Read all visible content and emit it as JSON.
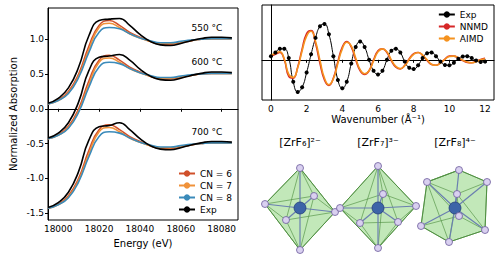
{
  "chart_data": [
    {
      "type": "line",
      "x_label": "Energy (eV)",
      "y_label": "Normalized Absorption",
      "x": [
        17995,
        18000,
        18005,
        18010,
        18015,
        18020,
        18025,
        18030,
        18035,
        18040,
        18045,
        18050,
        18055,
        18060,
        18065,
        18070,
        18075,
        18080,
        18085
      ],
      "groups": [
        {
          "annotation": "550 °C",
          "series": [
            {
              "name": "CN = 6",
              "color": "#d0502a",
              "values": [
                0.07,
                0.13,
                0.25,
                0.5,
                0.9,
                1.2,
                1.27,
                1.2,
                1.1,
                1.03,
                0.97,
                0.93,
                0.93,
                0.95,
                0.98,
                1.0,
                1.01,
                1.01,
                1.01
              ]
            },
            {
              "name": "CN = 7",
              "color": "#f0923a",
              "values": [
                0.07,
                0.12,
                0.23,
                0.47,
                0.85,
                1.17,
                1.23,
                1.17,
                1.08,
                1.02,
                0.97,
                0.94,
                0.94,
                0.96,
                0.98,
                1.0,
                1.01,
                1.01,
                1.01
              ]
            },
            {
              "name": "CN = 8",
              "color": "#3b8bba",
              "values": [
                0.07,
                0.12,
                0.22,
                0.45,
                0.81,
                1.1,
                1.17,
                1.15,
                1.08,
                1.02,
                0.98,
                0.95,
                0.95,
                0.97,
                0.99,
                1.0,
                1.01,
                1.01,
                1.01
              ]
            },
            {
              "name": "Exp",
              "color": "#000000",
              "values": [
                0.08,
                0.15,
                0.3,
                0.6,
                1.05,
                1.27,
                1.29,
                1.3,
                1.2,
                1.07,
                0.97,
                0.92,
                0.91,
                0.94,
                0.98,
                1.01,
                1.03,
                1.03,
                1.02
              ]
            }
          ]
        },
        {
          "annotation": "600 °C",
          "series": [
            {
              "name": "CN = 6",
              "color": "#d0502a",
              "values": [
                -0.43,
                -0.37,
                -0.25,
                0,
                0.4,
                0.7,
                0.77,
                0.7,
                0.6,
                0.53,
                0.47,
                0.43,
                0.43,
                0.45,
                0.48,
                0.5,
                0.51,
                0.51,
                0.51
              ]
            },
            {
              "name": "CN = 7",
              "color": "#f0923a",
              "values": [
                -0.43,
                -0.38,
                -0.27,
                -0.03,
                0.35,
                0.67,
                0.73,
                0.67,
                0.58,
                0.52,
                0.47,
                0.44,
                0.44,
                0.46,
                0.48,
                0.5,
                0.51,
                0.51,
                0.51
              ]
            },
            {
              "name": "CN = 8",
              "color": "#3b8bba",
              "values": [
                -0.43,
                -0.38,
                -0.28,
                -0.05,
                0.31,
                0.6,
                0.67,
                0.65,
                0.58,
                0.52,
                0.48,
                0.45,
                0.45,
                0.47,
                0.49,
                0.5,
                0.51,
                0.51,
                0.51
              ]
            },
            {
              "name": "Exp",
              "color": "#000000",
              "values": [
                -0.42,
                -0.35,
                -0.2,
                0.1,
                0.55,
                0.74,
                0.76,
                0.78,
                0.7,
                0.57,
                0.47,
                0.42,
                0.41,
                0.44,
                0.48,
                0.51,
                0.53,
                0.53,
                0.52
              ]
            }
          ]
        },
        {
          "annotation": "700 °C",
          "series": [
            {
              "name": "CN = 6",
              "color": "#d0502a",
              "values": [
                -1.43,
                -1.37,
                -1.25,
                -1,
                -0.6,
                -0.3,
                -0.23,
                -0.3,
                -0.4,
                -0.47,
                -0.53,
                -0.57,
                -0.57,
                -0.55,
                -0.52,
                -0.5,
                -0.49,
                -0.49,
                -0.49
              ]
            },
            {
              "name": "CN = 7",
              "color": "#f0923a",
              "values": [
                -1.43,
                -1.38,
                -1.27,
                -1.03,
                -0.65,
                -0.33,
                -0.27,
                -0.33,
                -0.42,
                -0.48,
                -0.53,
                -0.56,
                -0.56,
                -0.54,
                -0.52,
                -0.5,
                -0.49,
                -0.49,
                -0.49
              ]
            },
            {
              "name": "CN = 8",
              "color": "#3b8bba",
              "values": [
                -1.43,
                -1.38,
                -1.28,
                -1.05,
                -0.69,
                -0.4,
                -0.33,
                -0.35,
                -0.42,
                -0.48,
                -0.52,
                -0.55,
                -0.55,
                -0.53,
                -0.51,
                -0.5,
                -0.49,
                -0.49,
                -0.49
              ]
            },
            {
              "name": "Exp",
              "color": "#000000",
              "values": [
                -1.42,
                -1.35,
                -1.2,
                -0.9,
                -0.45,
                -0.26,
                -0.24,
                -0.2,
                -0.3,
                -0.43,
                -0.53,
                -0.58,
                -0.59,
                -0.56,
                -0.52,
                -0.49,
                -0.47,
                -0.47,
                -0.48
              ]
            }
          ]
        }
      ],
      "xlim": [
        17995,
        18088
      ],
      "xticks": [
        18000,
        18020,
        18040,
        18060,
        18080
      ],
      "ylim": [
        -1.6,
        1.45
      ],
      "yticks": [
        -1.5,
        {
          "value": -1,
          "label": "-1.0"
        },
        -0.5,
        {
          "value": 0,
          "label": "0.0"
        },
        0.5,
        {
          "value": 1,
          "label": "1.0"
        }
      ],
      "legend": "lower right",
      "grid": false
    },
    {
      "type": "line",
      "x_label": "Wavenumber (Å⁻¹)",
      "x": [
        0,
        0.25,
        0.5,
        0.75,
        1,
        1.25,
        1.5,
        1.75,
        2,
        2.25,
        2.5,
        2.75,
        3,
        3.25,
        3.5,
        3.75,
        4,
        4.25,
        4.5,
        4.75,
        5,
        5.25,
        5.5,
        5.75,
        6,
        6.25,
        6.5,
        6.75,
        7,
        7.25,
        7.5,
        7.75,
        8,
        8.25,
        8.5,
        8.75,
        9,
        9.25,
        9.5,
        9.75,
        10,
        10.25,
        10.5,
        10.75,
        11,
        11.25,
        11.5,
        11.75,
        12
      ],
      "series": [
        {
          "name": "Exp",
          "color": "#000000",
          "marker": "circle",
          "values": [
            0.1,
            0.2,
            0.3,
            0.3,
            0.05,
            -0.6,
            -0.88,
            -0.75,
            -0.35,
            0.15,
            0.6,
            0.92,
            0.98,
            0.7,
            0.1,
            -0.55,
            -0.78,
            -0.6,
            -0.1,
            0.35,
            0.5,
            0.35,
            0.0,
            -0.3,
            -0.4,
            -0.3,
            0.0,
            0.25,
            0.3,
            0.2,
            -0.05,
            -0.22,
            -0.25,
            -0.15,
            0.05,
            0.18,
            0.2,
            0.1,
            -0.05,
            -0.14,
            -0.15,
            -0.08,
            0.03,
            0.09,
            0.1,
            0.05,
            -0.02,
            -0.06,
            -0.05
          ]
        },
        {
          "name": "NNMD",
          "color": "#d62728",
          "values": [
            0.1,
            0.15,
            0.2,
            0.0,
            -0.45,
            -0.5,
            -0.2,
            0.3,
            0.72,
            0.8,
            0.45,
            -0.1,
            -0.55,
            -0.7,
            -0.5,
            -0.05,
            0.35,
            0.5,
            0.35,
            0.0,
            -0.3,
            -0.4,
            -0.3,
            0.0,
            0.25,
            0.3,
            0.2,
            -0.03,
            -0.2,
            -0.25,
            -0.15,
            0.03,
            0.17,
            0.2,
            0.12,
            -0.02,
            -0.13,
            -0.15,
            -0.08,
            0.02,
            0.1,
            0.1,
            0.05,
            -0.02,
            -0.07,
            -0.08,
            -0.04,
            0.01,
            0.04
          ]
        },
        {
          "name": "AIMD",
          "color": "#f5921e",
          "values": [
            0.12,
            0.18,
            0.22,
            0.02,
            -0.4,
            -0.48,
            -0.22,
            0.25,
            0.65,
            0.78,
            0.5,
            -0.02,
            -0.5,
            -0.68,
            -0.52,
            -0.1,
            0.3,
            0.48,
            0.38,
            0.05,
            -0.27,
            -0.38,
            -0.3,
            -0.03,
            0.22,
            0.3,
            0.22,
            0.0,
            -0.18,
            -0.24,
            -0.16,
            0.01,
            0.15,
            0.2,
            0.13,
            0.0,
            -0.12,
            -0.15,
            -0.09,
            0.01,
            0.09,
            0.1,
            0.06,
            -0.01,
            -0.06,
            -0.08,
            -0.05,
            0.0,
            0.03
          ]
        }
      ],
      "xlim": [
        -0.5,
        12.5
      ],
      "xticks": [
        0,
        2,
        4,
        6,
        8,
        10,
        12
      ],
      "ylim": [
        -1.1,
        1.5
      ],
      "tick_labels": "x",
      "legend": "upper right",
      "grid": false
    }
  ],
  "structures": [
    {
      "label": "[ZrF₆]²⁻"
    },
    {
      "label": "[ZrF₇]³⁻"
    },
    {
      "label": "[ZrF₈]⁴⁻"
    }
  ]
}
